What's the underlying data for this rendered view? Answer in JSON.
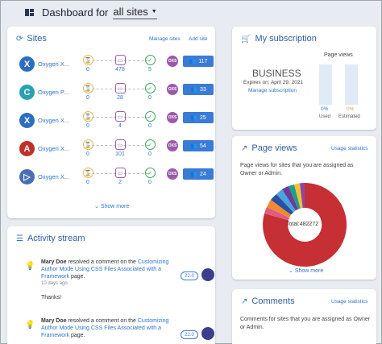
{
  "header": {
    "title": "Dashboard for",
    "scope": "all sites",
    "icon": "dashboard-icon"
  },
  "sites_card": {
    "title": "Sites",
    "manage_link": "Manage sites",
    "add_link": "Add site",
    "rows": [
      {
        "name": "Oxygen X...",
        "logo": "X",
        "logo_color": "#2c6fbf",
        "pending": "0",
        "comments": "478",
        "approved": "5",
        "users": "117"
      },
      {
        "name": "Oxygen P...",
        "logo": "C",
        "logo_color": "#27a3b0",
        "pending": "0",
        "comments": "28",
        "approved": "0",
        "users": "33"
      },
      {
        "name": "Oxygen X...",
        "logo": "X",
        "logo_color": "#2c6fbf",
        "pending": "0",
        "comments": "4",
        "approved": "0",
        "users": "25"
      },
      {
        "name": "Oxygen X...",
        "logo": "A",
        "logo_color": "#c0302a",
        "pending": "0",
        "comments": "101",
        "approved": "0",
        "users": "54"
      },
      {
        "name": "Oxygen X...",
        "logo": "▷",
        "logo_color": "#4a6fb8",
        "pending": "0",
        "comments": "2",
        "approved": "0",
        "users": "24"
      }
    ],
    "oxygen_badge": "OXS",
    "show_more": "Show more"
  },
  "subscription_card": {
    "title": "My subscription",
    "plan": "BUSINESS",
    "expires": "Expires on: April 29, 2021",
    "manage_link": "Manage subscription",
    "page_views_label": "Page views",
    "used_pct": "0%",
    "used_label": "Used",
    "estimated_pct": "0%",
    "estimated_label": "Estimated"
  },
  "pageviews_card": {
    "title": "Page views",
    "stats_link": "Usage statistics",
    "description": "Page views for sites that you are assigned as Owner or Admin.",
    "total": "Total:482272",
    "show_more": "Show more"
  },
  "activity_card": {
    "title": "Activity stream",
    "items": [
      {
        "user": "Mary Doe",
        "action": " resolved a comment on the ",
        "link": "Customizing Author Mode Using CSS Files Associated with a Framework",
        "suffix": " page.",
        "time": "10 days ago",
        "version": "22.0",
        "body": "Thanks!"
      },
      {
        "user": "Mary Doe",
        "action": " resolved a comment on the ",
        "link": "Customizing Author Mode Using CSS Files Associated with a Framework",
        "suffix": " page.",
        "time": "",
        "version": "22.0",
        "body": ""
      }
    ]
  },
  "comments_card": {
    "title": "Comments",
    "stats_link": "Usage statistics",
    "description": "Comments for sites that you are assigned as Owner or Admin."
  },
  "colors": {
    "accent": "#3a7bd5",
    "title": "#2f5fa0",
    "pie_main": "#c62f33"
  }
}
